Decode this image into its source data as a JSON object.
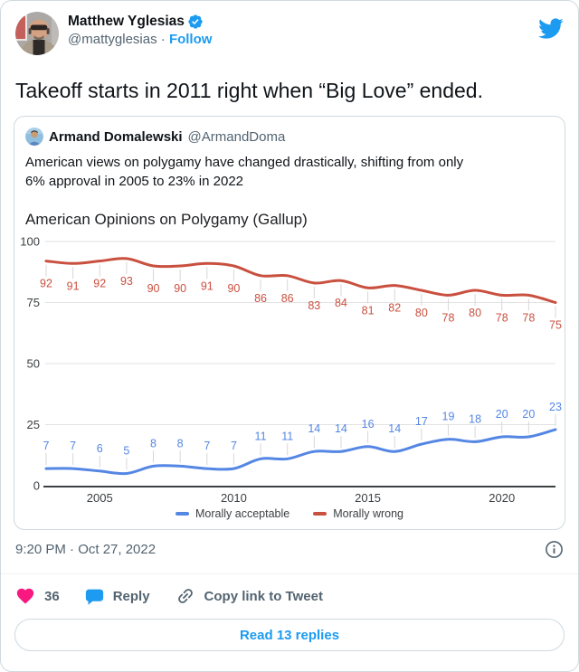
{
  "colors": {
    "accent_blue": "#1d9bf0",
    "heart_pink": "#f91880",
    "text_primary": "#0f1419",
    "text_secondary": "#536471",
    "border": "#cfd9de",
    "series_acceptable_blue": "#5486e4",
    "series_wrong_red": "#c9503f"
  },
  "tweet": {
    "author_name": "Matthew Yglesias",
    "author_handle": "@mattyglesias",
    "separator": "·",
    "follow_label": "Follow",
    "body": "Takeoff starts in 2011 right when “Big Love” ended.",
    "timestamp": "9:20 PM · Oct 27, 2022",
    "like_count": "36",
    "reply_label": "Reply",
    "copy_link_label": "Copy link to Tweet",
    "read_replies_label": "Read 13 replies"
  },
  "quoted_tweet": {
    "author_name": "Armand Domalewski",
    "author_handle": "@ArmandDoma",
    "body_line1": "American views on polygamy have changed drastically, shifting from only",
    "body_line2": "6% approval in 2005 to 23% in 2022"
  },
  "chart_data": {
    "type": "line",
    "title": "American Opinions on Polygamy (Gallup)",
    "x": [
      2003,
      2004,
      2005,
      2006,
      2007,
      2008,
      2009,
      2010,
      2011,
      2012,
      2013,
      2014,
      2015,
      2016,
      2017,
      2018,
      2019,
      2020,
      2021,
      2022
    ],
    "series": [
      {
        "name": "Morally acceptable",
        "color": "#5486e4",
        "values": [
          7,
          7,
          6,
          5,
          8,
          8,
          7,
          7,
          11,
          11,
          14,
          14,
          16,
          14,
          17,
          19,
          18,
          20,
          20,
          23
        ]
      },
      {
        "name": "Morally wrong",
        "color": "#c9503f",
        "values": [
          92,
          91,
          92,
          93,
          90,
          90,
          91,
          90,
          86,
          86,
          83,
          84,
          81,
          82,
          80,
          78,
          80,
          78,
          78,
          75
        ]
      }
    ],
    "ylim": [
      0,
      100
    ],
    "yticks": [
      0,
      25,
      50,
      75,
      100
    ],
    "xticks": [
      2005,
      2010,
      2015,
      2020
    ],
    "grid": true,
    "legend_position": "bottom",
    "data_labels": true
  }
}
